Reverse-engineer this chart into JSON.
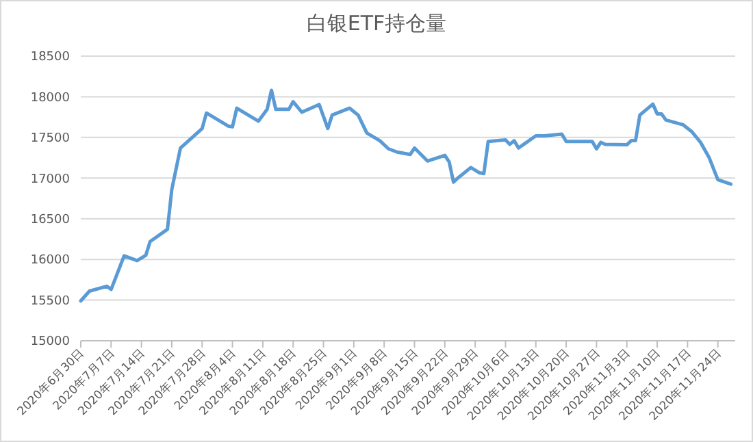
{
  "chart_data": {
    "type": "line",
    "title": "白银ETF持仓量",
    "x": [
      "2020-06-30",
      "2020-07-02",
      "2020-07-06",
      "2020-07-07",
      "2020-07-10",
      "2020-07-13",
      "2020-07-15",
      "2020-07-16",
      "2020-07-20",
      "2020-07-21",
      "2020-07-23",
      "2020-07-28",
      "2020-07-29",
      "2020-08-03",
      "2020-08-04",
      "2020-08-05",
      "2020-08-10",
      "2020-08-12",
      "2020-08-13",
      "2020-08-14",
      "2020-08-17",
      "2020-08-18",
      "2020-08-20",
      "2020-08-24",
      "2020-08-26",
      "2020-08-27",
      "2020-08-31",
      "2020-09-02",
      "2020-09-04",
      "2020-09-07",
      "2020-09-09",
      "2020-09-11",
      "2020-09-14",
      "2020-09-15",
      "2020-09-18",
      "2020-09-22",
      "2020-09-23",
      "2020-09-24",
      "2020-09-25",
      "2020-09-28",
      "2020-09-30",
      "2020-10-01",
      "2020-10-02",
      "2020-10-06",
      "2020-10-07",
      "2020-10-08",
      "2020-10-09",
      "2020-10-13",
      "2020-10-15",
      "2020-10-19",
      "2020-10-20",
      "2020-10-26",
      "2020-10-27",
      "2020-10-28",
      "2020-10-29",
      "2020-11-03",
      "2020-11-04",
      "2020-11-05",
      "2020-11-06",
      "2020-11-09",
      "2020-11-10",
      "2020-11-11",
      "2020-11-12",
      "2020-11-16",
      "2020-11-18",
      "2020-11-20",
      "2020-11-22",
      "2020-11-24",
      "2020-11-27"
    ],
    "series": [
      {
        "color": "#5b9bd5",
        "values": [
          15490,
          15610,
          15670,
          15630,
          16045,
          15985,
          16050,
          16220,
          16370,
          16860,
          17370,
          17610,
          17800,
          17640,
          17630,
          17860,
          17700,
          17845,
          18080,
          17845,
          17845,
          17940,
          17810,
          17905,
          17610,
          17775,
          17860,
          17775,
          17555,
          17460,
          17360,
          17320,
          17290,
          17370,
          17210,
          17280,
          17200,
          16950,
          17000,
          17130,
          17065,
          17055,
          17450,
          17470,
          17415,
          17460,
          17370,
          17520,
          17520,
          17540,
          17450,
          17450,
          17360,
          17440,
          17415,
          17410,
          17460,
          17460,
          17775,
          17910,
          17790,
          17790,
          17715,
          17655,
          17570,
          17440,
          17250,
          16980,
          16925
        ]
      }
    ],
    "xlim": [
      "2020-06-30",
      "2020-11-28"
    ],
    "xticks": [
      {
        "value": "2020-06-30",
        "label": "2020年6月30日"
      },
      {
        "value": "2020-07-07",
        "label": "2020年7月7日"
      },
      {
        "value": "2020-07-14",
        "label": "2020年7月14日"
      },
      {
        "value": "2020-07-21",
        "label": "2020年7月21日"
      },
      {
        "value": "2020-07-28",
        "label": "2020年7月28日"
      },
      {
        "value": "2020-08-04",
        "label": "2020年8月4日"
      },
      {
        "value": "2020-08-11",
        "label": "2020年8月11日"
      },
      {
        "value": "2020-08-18",
        "label": "2020年8月18日"
      },
      {
        "value": "2020-08-25",
        "label": "2020年8月25日"
      },
      {
        "value": "2020-09-01",
        "label": "2020年9月1日"
      },
      {
        "value": "2020-09-08",
        "label": "2020年9月8日"
      },
      {
        "value": "2020-09-15",
        "label": "2020年9月15日"
      },
      {
        "value": "2020-09-22",
        "label": "2020年9月22日"
      },
      {
        "value": "2020-09-29",
        "label": "2020年9月29日"
      },
      {
        "value": "2020-10-06",
        "label": "2020年10月6日"
      },
      {
        "value": "2020-10-13",
        "label": "2020年10月13日"
      },
      {
        "value": "2020-10-20",
        "label": "2020年10月20日"
      },
      {
        "value": "2020-10-27",
        "label": "2020年10月27日"
      },
      {
        "value": "2020-11-03",
        "label": "2020年11月3日"
      },
      {
        "value": "2020-11-10",
        "label": "2020年11月10日"
      },
      {
        "value": "2020-11-17",
        "label": "2020年11月17日"
      },
      {
        "value": "2020-11-24",
        "label": "2020年11月24日"
      }
    ],
    "ylim": [
      15000,
      18500
    ],
    "yticks": [
      15000,
      15500,
      16000,
      16500,
      17000,
      17500,
      18000,
      18500
    ],
    "grid": "y",
    "marker": "none",
    "line_style": "solid"
  }
}
